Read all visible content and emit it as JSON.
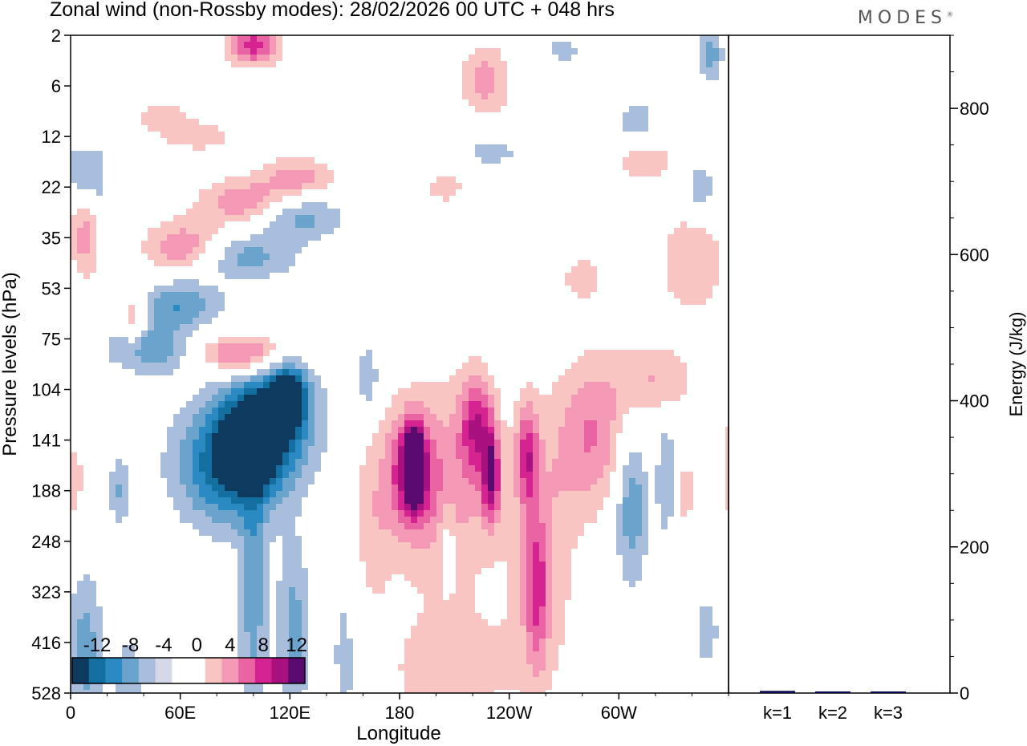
{
  "title": "Zonal wind (non-Rossby modes):  28/02/2026  00 UTC  + 048 hrs",
  "brand": "MODES",
  "brand_mark": "®",
  "chart_data": [
    {
      "type": "heatmap",
      "title": "Zonal wind (non-Rossby modes):  28/02/2026  00 UTC  + 048 hrs",
      "xlabel": "Longitude",
      "ylabel": "Pressure levels (hPa)",
      "x_ticks": [
        "0",
        "60E",
        "120E",
        "180",
        "120W",
        "60W"
      ],
      "x_tick_values": [
        0,
        60,
        120,
        180,
        240,
        300
      ],
      "x_range": [
        0,
        360
      ],
      "y_ticks": [
        "2",
        "6",
        "12",
        "22",
        "35",
        "53",
        "75",
        "104",
        "141",
        "188",
        "248",
        "323",
        "416",
        "528"
      ],
      "colorbar": {
        "labels": [
          "-12",
          "-8",
          "-4",
          "0",
          "4",
          "8",
          "12"
        ],
        "colors": [
          "#0d3a5e",
          "#136f9f",
          "#2b8ac2",
          "#6aa3cc",
          "#a8bedc",
          "#d6d8e8",
          "#ffffff",
          "#ffffff",
          "#f8c5c3",
          "#f59ab6",
          "#ea64a3",
          "#d42390",
          "#a8117f",
          "#5a0a6e"
        ]
      },
      "blobs": [
        {
          "lon": 98,
          "lev": 8.1,
          "v": -14,
          "w": 14,
          "h": 0.7
        },
        {
          "lon": 118,
          "lev": 7.2,
          "v": -13,
          "w": 10,
          "h": 0.6
        },
        {
          "lon": 85,
          "lev": 8.5,
          "v": -9,
          "w": 28,
          "h": 1.2
        },
        {
          "lon": 110,
          "lev": 7.6,
          "v": -8,
          "w": 26,
          "h": 1.2
        },
        {
          "lon": 100,
          "lev": 11.2,
          "v": -5,
          "w": 8,
          "h": 2.6
        },
        {
          "lon": 122,
          "lev": 11.8,
          "v": -5,
          "w": 9,
          "h": 1.8
        },
        {
          "lon": 60,
          "lev": 5.3,
          "v": -6,
          "w": 22,
          "h": 0.5
        },
        {
          "lon": 44,
          "lev": 6.2,
          "v": -6,
          "w": 22,
          "h": 0.5
        },
        {
          "lon": 95,
          "lev": 4.4,
          "v": -5,
          "w": 28,
          "h": 0.45
        },
        {
          "lon": 125,
          "lev": 3.6,
          "v": -5,
          "w": 25,
          "h": 0.45
        },
        {
          "lon": 8,
          "lev": 12.2,
          "v": -5,
          "w": 10,
          "h": 1.6
        },
        {
          "lon": 27,
          "lev": 9.0,
          "v": -4,
          "w": 6,
          "h": 0.7
        },
        {
          "lon": 163,
          "lev": 6.8,
          "v": -4,
          "w": 6,
          "h": 0.7
        },
        {
          "lon": 5,
          "lev": 2.7,
          "v": -4,
          "w": 8,
          "h": 0.5
        },
        {
          "lon": 206,
          "lev": 10.0,
          "v": -3,
          "w": 5,
          "h": 0.8
        },
        {
          "lon": 270,
          "lev": 0.3,
          "v": -3,
          "w": 10,
          "h": 0.3
        },
        {
          "lon": 307,
          "lev": 9.3,
          "v": -6,
          "w": 9,
          "h": 1.5
        },
        {
          "lon": 327,
          "lev": 8.8,
          "v": -5,
          "w": 6,
          "h": 1.2
        },
        {
          "lon": 350,
          "lev": 0.4,
          "v": -5,
          "w": 7,
          "h": 0.5
        },
        {
          "lon": 345,
          "lev": 3.0,
          "v": -4,
          "w": 8,
          "h": 0.5
        },
        {
          "lon": 310,
          "lev": 1.7,
          "v": -4,
          "w": 10,
          "h": 0.4
        },
        {
          "lon": 230,
          "lev": 2.3,
          "v": -3,
          "w": 18,
          "h": 0.35
        },
        {
          "lon": 348,
          "lev": 11.8,
          "v": -3,
          "w": 8,
          "h": 0.8
        },
        {
          "lon": 150,
          "lev": 12.3,
          "v": -3,
          "w": 8,
          "h": 1.8
        },
        {
          "lon": 32,
          "lev": 12.8,
          "v": -3,
          "w": 10,
          "h": 1.3
        },
        {
          "lon": 15,
          "lev": 2.8,
          "v": -3,
          "w": 6,
          "h": 0.6
        },
        {
          "lon": 188,
          "lev": 8.5,
          "v": 13,
          "w": 5,
          "h": 0.7
        },
        {
          "lon": 186,
          "lev": 8.6,
          "v": 9,
          "w": 12,
          "h": 1.1
        },
        {
          "lon": 230,
          "lev": 8.7,
          "v": 10,
          "w": 5,
          "h": 0.9
        },
        {
          "lon": 222,
          "lev": 7.7,
          "v": 8,
          "w": 9,
          "h": 1.0
        },
        {
          "lon": 250,
          "lev": 8.3,
          "v": 8,
          "w": 6,
          "h": 1.0
        },
        {
          "lon": 255,
          "lev": 11.0,
          "v": 6,
          "w": 6,
          "h": 1.4
        },
        {
          "lon": 205,
          "lev": 9.0,
          "v": 5,
          "w": 28,
          "h": 2.1
        },
        {
          "lon": 258,
          "lev": 10.3,
          "v": 4,
          "w": 18,
          "h": 2.5
        },
        {
          "lon": 210,
          "lev": 12.5,
          "v": 3,
          "w": 40,
          "h": 1.1
        },
        {
          "lon": 165,
          "lev": 9.6,
          "v": 3,
          "w": 12,
          "h": 1.8
        },
        {
          "lon": 95,
          "lev": 6.3,
          "v": 8,
          "w": 24,
          "h": 0.4
        },
        {
          "lon": 62,
          "lev": 4.2,
          "v": 6,
          "w": 22,
          "h": 0.55
        },
        {
          "lon": 95,
          "lev": 3.3,
          "v": 6,
          "w": 24,
          "h": 0.45
        },
        {
          "lon": 125,
          "lev": 2.8,
          "v": 5,
          "w": 20,
          "h": 0.4
        },
        {
          "lon": 35,
          "lev": 5.6,
          "v": 5,
          "w": 6,
          "h": 0.6
        },
        {
          "lon": 8,
          "lev": 4.0,
          "v": 5,
          "w": 8,
          "h": 0.8
        },
        {
          "lon": 100,
          "lev": 0.2,
          "v": 9,
          "w": 14,
          "h": 0.4
        },
        {
          "lon": 227,
          "lev": 0.9,
          "v": 5,
          "w": 14,
          "h": 0.7
        },
        {
          "lon": 285,
          "lev": 7.9,
          "v": 6,
          "w": 20,
          "h": 1.5
        },
        {
          "lon": 320,
          "lev": 6.8,
          "v": 4,
          "w": 22,
          "h": 0.7
        },
        {
          "lon": 340,
          "lev": 4.5,
          "v": 4,
          "w": 18,
          "h": 1.0
        },
        {
          "lon": 280,
          "lev": 4.8,
          "v": 3,
          "w": 12,
          "h": 0.5
        },
        {
          "lon": 315,
          "lev": 2.5,
          "v": 3,
          "w": 20,
          "h": 0.5
        },
        {
          "lon": 205,
          "lev": 3.0,
          "v": 3,
          "w": 12,
          "h": 0.4
        },
        {
          "lon": 190,
          "lev": 13.8,
          "v": 3,
          "w": 12,
          "h": 0.7
        },
        {
          "lon": 3,
          "lev": 8.8,
          "v": 4,
          "w": 3,
          "h": 0.8
        },
        {
          "lon": 70,
          "lev": 2.0,
          "v": 3,
          "w": 24,
          "h": 0.35
        },
        {
          "lon": 50,
          "lev": 1.6,
          "v": 3,
          "w": 16,
          "h": 0.3
        },
        {
          "lon": 335,
          "lev": 9.0,
          "v": 3,
          "w": 8,
          "h": 1.1
        },
        {
          "lon": 360,
          "lev": 8.6,
          "v": 4,
          "w": 4,
          "h": 1.0
        }
      ]
    },
    {
      "type": "bar",
      "categories": [
        "k=1",
        "k=2",
        "k=3"
      ],
      "values": [
        3,
        2,
        1
      ],
      "ylabel": "Energy (J/kg)",
      "y_ticks": [
        "0",
        "200",
        "400",
        "600",
        "800"
      ],
      "ylim": [
        0,
        900
      ],
      "bar_color": "#0a0a55"
    }
  ]
}
